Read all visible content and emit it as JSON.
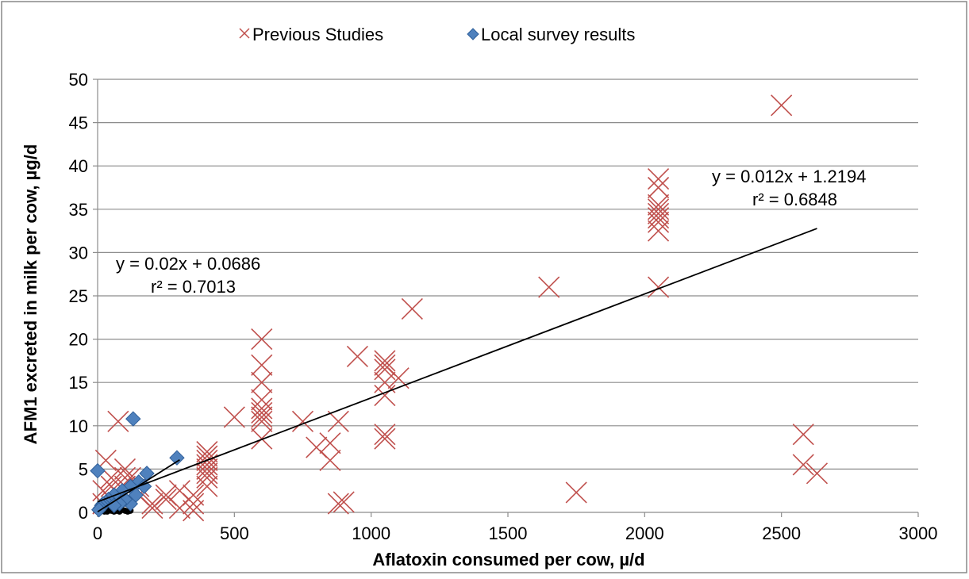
{
  "chart_data": {
    "type": "scatter",
    "xlabel": "Aflatoxin consumed per cow, µ/d",
    "ylabel": "AFM1 excreted in milk per cow, µg/d",
    "xlim": [
      0,
      3000
    ],
    "ylim": [
      0,
      50
    ],
    "x_ticks": [
      0,
      500,
      1000,
      1500,
      2000,
      2500,
      3000
    ],
    "y_ticks": [
      0,
      5,
      10,
      15,
      20,
      25,
      30,
      35,
      40,
      45,
      50
    ],
    "grid": "horizontal",
    "legend_position": "top",
    "series": [
      {
        "name": "Previous Studies",
        "marker": "x",
        "color": "#c0504d",
        "points": [
          [
            2500,
            47
          ],
          [
            2050,
            38.5
          ],
          [
            2050,
            37.5
          ],
          [
            2050,
            35.5
          ],
          [
            2050,
            35
          ],
          [
            2050,
            34.5
          ],
          [
            2050,
            34
          ],
          [
            2050,
            33.5
          ],
          [
            2050,
            32.5
          ],
          [
            2050,
            26
          ],
          [
            1650,
            26
          ],
          [
            1150,
            23.5
          ],
          [
            950,
            18
          ],
          [
            1050,
            17.5
          ],
          [
            1050,
            17
          ],
          [
            1050,
            16.5
          ],
          [
            1100,
            15.5
          ],
          [
            1050,
            15
          ],
          [
            1050,
            13.5
          ],
          [
            1050,
            9
          ],
          [
            1050,
            8.5
          ],
          [
            600,
            20
          ],
          [
            600,
            17
          ],
          [
            600,
            15
          ],
          [
            600,
            13
          ],
          [
            600,
            12
          ],
          [
            600,
            11.5
          ],
          [
            600,
            11
          ],
          [
            600,
            10.5
          ],
          [
            600,
            8.5
          ],
          [
            500,
            11
          ],
          [
            750,
            10.5
          ],
          [
            880,
            10.5
          ],
          [
            800,
            7.5
          ],
          [
            850,
            8
          ],
          [
            850,
            6
          ],
          [
            880,
            1
          ],
          [
            900,
            1.2
          ],
          [
            1750,
            2.3
          ],
          [
            2580,
            9
          ],
          [
            2580,
            5.5
          ],
          [
            2630,
            4.5
          ],
          [
            400,
            7
          ],
          [
            400,
            6.5
          ],
          [
            400,
            6
          ],
          [
            400,
            5.5
          ],
          [
            400,
            5
          ],
          [
            400,
            4.5
          ],
          [
            400,
            4
          ],
          [
            400,
            3
          ],
          [
            350,
            2
          ],
          [
            350,
            1
          ],
          [
            300,
            0.5
          ],
          [
            350,
            0.2
          ],
          [
            300,
            2.5
          ],
          [
            250,
            2
          ],
          [
            250,
            1.5
          ],
          [
            200,
            1
          ],
          [
            200,
            0.5
          ],
          [
            150,
            3
          ],
          [
            150,
            2
          ],
          [
            100,
            5
          ],
          [
            100,
            4
          ],
          [
            100,
            3
          ],
          [
            50,
            4
          ],
          [
            50,
            3
          ],
          [
            75,
            10.5
          ],
          [
            30,
            6
          ],
          [
            120,
            4
          ],
          [
            80,
            2
          ],
          [
            50,
            1.5
          ],
          [
            20,
            2.5
          ],
          [
            20,
            1
          ]
        ]
      },
      {
        "name": "Local survey results",
        "marker": "diamond",
        "color": "#4f81bd",
        "points": [
          [
            130,
            10.8
          ],
          [
            290,
            6.3
          ],
          [
            0,
            4.8
          ],
          [
            180,
            4.5
          ],
          [
            150,
            3.5
          ],
          [
            120,
            3
          ],
          [
            90,
            2.5
          ],
          [
            60,
            2
          ],
          [
            40,
            1.5
          ],
          [
            30,
            1.2
          ],
          [
            20,
            1
          ],
          [
            15,
            0.8
          ],
          [
            10,
            0.5
          ],
          [
            5,
            0.3
          ],
          [
            120,
            1
          ],
          [
            140,
            2
          ],
          [
            170,
            3
          ],
          [
            100,
            1.5
          ],
          [
            80,
            1
          ],
          [
            60,
            0.8
          ]
        ]
      },
      {
        "name": "",
        "marker": "circle-small",
        "color": "#000000",
        "points": [
          [
            0,
            0.1
          ],
          [
            5,
            0.2
          ],
          [
            10,
            0.1
          ],
          [
            15,
            0.3
          ],
          [
            20,
            0.2
          ],
          [
            25,
            0.1
          ],
          [
            30,
            0.2
          ],
          [
            35,
            0.1
          ],
          [
            40,
            0.3
          ],
          [
            50,
            0.2
          ],
          [
            60,
            0.1
          ],
          [
            70,
            0.2
          ],
          [
            80,
            0.1
          ],
          [
            90,
            0.3
          ],
          [
            100,
            0.2
          ],
          [
            110,
            0.1
          ],
          [
            120,
            0.2
          ]
        ]
      }
    ],
    "trendlines": [
      {
        "equation": "y = 0.02x + 0.0686",
        "r2": "r² = 0.7013",
        "slope": 0.02,
        "intercept": 0.0686,
        "x_range": [
          0,
          300
        ]
      },
      {
        "equation": "y = 0.012x + 1.2194",
        "r2": "r² = 0.6848",
        "slope": 0.012,
        "intercept": 1.2194,
        "x_range": [
          0,
          2630
        ]
      }
    ]
  }
}
